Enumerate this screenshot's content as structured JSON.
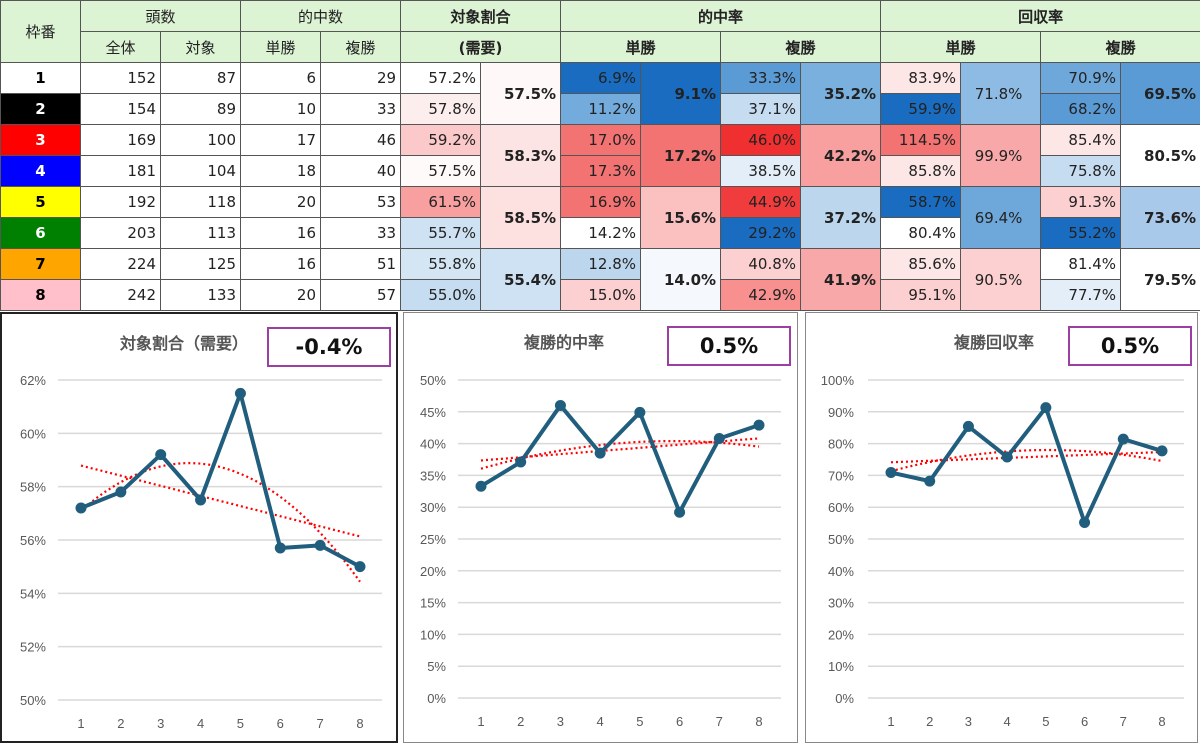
{
  "table": {
    "headers": {
      "frame": "枠番",
      "count": "頭数",
      "count_total": "全体",
      "count_target": "対象",
      "hits": "的中数",
      "hits_win": "単勝",
      "hits_place": "複勝",
      "ratio_l1": "対象割合",
      "ratio_l2": "(需要)",
      "hit_rate": "的中率",
      "hit_rate_win": "単勝",
      "hit_rate_place": "複勝",
      "return_rate": "回収率",
      "return_win": "単勝",
      "return_place": "複勝"
    },
    "rows": [
      {
        "frame": "1",
        "bg": "#ffffff",
        "fg": "#000000",
        "total": "152",
        "target": "87",
        "win_hits": "6",
        "place_hits": "29",
        "ratio": [
          "57.2%",
          "#ffffff"
        ],
        "hit_win": [
          "6.9%",
          "#1a6cc0"
        ],
        "hit_place": [
          "33.3%",
          "#5b9bd5"
        ],
        "ret_win": [
          "83.9%",
          "#fde6e6"
        ],
        "ret_place": [
          "70.9%",
          "#6ea7da"
        ]
      },
      {
        "frame": "2",
        "bg": "#000000",
        "fg": "#ffffff",
        "total": "154",
        "target": "89",
        "win_hits": "10",
        "place_hits": "33",
        "ratio": [
          "57.8%",
          "#fdeeee"
        ],
        "hit_win": [
          "11.2%",
          "#73abdc"
        ],
        "hit_place": [
          "37.1%",
          "#c6dcf1"
        ],
        "ret_win": [
          "59.9%",
          "#1a6cc0"
        ],
        "ret_place": [
          "68.2%",
          "#5b9bd5"
        ]
      },
      {
        "frame": "3",
        "bg": "#ff0000",
        "fg": "#ffffff",
        "total": "169",
        "target": "100",
        "win_hits": "17",
        "place_hits": "46",
        "ratio": [
          "59.2%",
          "#fbc9c9"
        ],
        "hit_win": [
          "17.0%",
          "#f37272"
        ],
        "hit_place": [
          "46.0%",
          "#f03030"
        ],
        "ret_win": [
          "114.5%",
          "#f37272"
        ],
        "ret_place": [
          "85.4%",
          "#fde6e6"
        ]
      },
      {
        "frame": "4",
        "bg": "#0000ff",
        "fg": "#ffffff",
        "total": "181",
        "target": "104",
        "win_hits": "18",
        "place_hits": "40",
        "ratio": [
          "57.5%",
          "#fffafa"
        ],
        "hit_win": [
          "17.3%",
          "#f37272"
        ],
        "hit_place": [
          "38.5%",
          "#e3eef9"
        ],
        "ret_win": [
          "85.8%",
          "#fde6e6"
        ],
        "ret_place": [
          "75.8%",
          "#c6dcf1"
        ]
      },
      {
        "frame": "5",
        "bg": "#ffff00",
        "fg": "#000000",
        "total": "192",
        "target": "118",
        "win_hits": "20",
        "place_hits": "53",
        "ratio": [
          "61.5%",
          "#f8a0a0"
        ],
        "hit_win": [
          "16.9%",
          "#f37272"
        ],
        "hit_place": [
          "44.9%",
          "#f03c3c"
        ],
        "ret_win": [
          "58.7%",
          "#1a6cc0"
        ],
        "ret_place": [
          "91.3%",
          "#fcd0d0"
        ]
      },
      {
        "frame": "6",
        "bg": "#008000",
        "fg": "#ffffff",
        "total": "203",
        "target": "113",
        "win_hits": "16",
        "place_hits": "33",
        "ratio": [
          "55.7%",
          "#cfe2f3"
        ],
        "hit_win": [
          "14.2%",
          "#ffffff"
        ],
        "hit_place": [
          "29.2%",
          "#1a6cc0"
        ],
        "ret_win": [
          "80.4%",
          "#ffffff"
        ],
        "ret_place": [
          "55.2%",
          "#1a6cc0"
        ]
      },
      {
        "frame": "7",
        "bg": "#ffa500",
        "fg": "#000000",
        "total": "224",
        "target": "125",
        "win_hits": "16",
        "place_hits": "51",
        "ratio": [
          "55.8%",
          "#d4e5f4"
        ],
        "hit_win": [
          "12.8%",
          "#bcd6ee"
        ],
        "hit_place": [
          "40.8%",
          "#fcd0d0"
        ],
        "ret_win": [
          "85.6%",
          "#fde6e6"
        ],
        "ret_place": [
          "81.4%",
          "#ffffff"
        ]
      },
      {
        "frame": "8",
        "bg": "#ffc0cb",
        "fg": "#000000",
        "total": "242",
        "target": "133",
        "win_hits": "20",
        "place_hits": "57",
        "ratio": [
          "55.0%",
          "#c6dcf1"
        ],
        "hit_win": [
          "15.0%",
          "#fcd0d0"
        ],
        "hit_place": [
          "42.9%",
          "#f89090"
        ],
        "ret_win": [
          "95.1%",
          "#fcd0d0"
        ],
        "ret_place": [
          "77.7%",
          "#e3eef9"
        ]
      }
    ],
    "pairs": [
      {
        "ratio": [
          "57.5%",
          "#fff8f8"
        ],
        "hit_win": [
          "9.1%",
          "#1a6cc0"
        ],
        "hit_place": [
          "35.2%",
          "#7ab0de"
        ],
        "ret_win": [
          "71.8%",
          "#8dbbe3"
        ],
        "ret_place": [
          "69.5%",
          "#5b9bd5"
        ]
      },
      {
        "ratio": [
          "58.3%",
          "#fde4e4"
        ],
        "hit_win": [
          "17.2%",
          "#f37272"
        ],
        "hit_place": [
          "42.2%",
          "#f8a0a0"
        ],
        "ret_win": [
          "99.9%",
          "#f8a8a8"
        ],
        "ret_place": [
          "80.5%",
          "#ffffff"
        ]
      },
      {
        "ratio": [
          "58.5%",
          "#fde0e0"
        ],
        "hit_win": [
          "15.6%",
          "#fbc0c0"
        ],
        "hit_place": [
          "37.2%",
          "#bcd6ee"
        ],
        "ret_win": [
          "69.4%",
          "#6ea7da"
        ],
        "ret_place": [
          "73.6%",
          "#a8c9ea"
        ]
      },
      {
        "ratio": [
          "55.4%",
          "#cfe2f3"
        ],
        "hit_win": [
          "14.0%",
          "#f5f9fd"
        ],
        "hit_place": [
          "41.9%",
          "#f8a8a8"
        ],
        "ret_win": [
          "90.5%",
          "#fcd0d0"
        ],
        "ret_place": [
          "79.5%",
          "#ffffff"
        ]
      }
    ]
  },
  "chart_data": [
    {
      "type": "line",
      "title": "対象割合（需要）",
      "badge": "-0.4%",
      "categories": [
        "1",
        "2",
        "3",
        "4",
        "5",
        "6",
        "7",
        "8"
      ],
      "values": [
        57.2,
        57.8,
        59.2,
        57.5,
        61.5,
        55.7,
        55.8,
        55.0
      ],
      "ylim": [
        50,
        62
      ],
      "yticks": [
        "50%",
        "52%",
        "54%",
        "56%",
        "58%",
        "60%",
        "62%"
      ],
      "grid": true,
      "trendlines": [
        "linear",
        "polynomial"
      ],
      "line_color": "#215e7e",
      "trend_color": "#ff0000"
    },
    {
      "type": "line",
      "title": "複勝的中率",
      "badge": "0.5%",
      "categories": [
        "1",
        "2",
        "3",
        "4",
        "5",
        "6",
        "7",
        "8"
      ],
      "values": [
        33.3,
        37.1,
        46.0,
        38.5,
        44.9,
        29.2,
        40.8,
        42.9
      ],
      "ylim": [
        0,
        50
      ],
      "yticks": [
        "0%",
        "5%",
        "10%",
        "15%",
        "20%",
        "25%",
        "30%",
        "35%",
        "40%",
        "45%",
        "50%"
      ],
      "grid": true,
      "trendlines": [
        "linear",
        "polynomial"
      ],
      "line_color": "#215e7e",
      "trend_color": "#ff0000"
    },
    {
      "type": "line",
      "title": "複勝回収率",
      "badge": "0.5%",
      "categories": [
        "1",
        "2",
        "3",
        "4",
        "5",
        "6",
        "7",
        "8"
      ],
      "values": [
        70.9,
        68.2,
        85.4,
        75.8,
        91.3,
        55.2,
        81.4,
        77.7
      ],
      "ylim": [
        0,
        100
      ],
      "yticks": [
        "0%",
        "10%",
        "20%",
        "30%",
        "40%",
        "50%",
        "60%",
        "70%",
        "80%",
        "90%",
        "100%"
      ],
      "grid": true,
      "trendlines": [
        "linear",
        "polynomial"
      ],
      "line_color": "#215e7e",
      "trend_color": "#ff0000"
    }
  ]
}
